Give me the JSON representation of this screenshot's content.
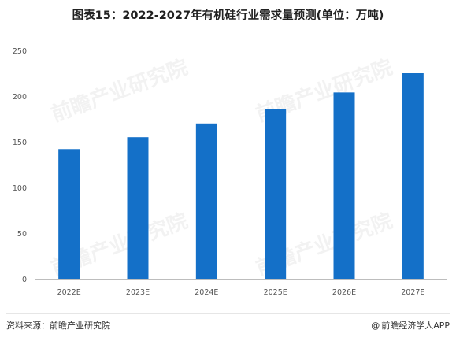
{
  "title": "图表15：2022-2027年有机硅行业需求量预测(单位：万吨)",
  "source": "资料来源：前瞻产业研究院",
  "credit_prefix": "@",
  "credit": "前瞻经济学人APP",
  "watermark": "前瞻产业研究院",
  "colors": {
    "bar": "#1470c8",
    "axis": "#bdbdbd",
    "title": "#222222"
  },
  "chart_data": {
    "type": "bar",
    "categories": [
      "2022E",
      "2023E",
      "2024E",
      "2025E",
      "2026E",
      "2027E"
    ],
    "values": [
      142,
      155,
      170,
      186,
      204,
      225
    ],
    "ylim": [
      0,
      250
    ],
    "yticks": [
      0,
      50,
      100,
      150,
      200,
      250
    ],
    "grid": false
  }
}
